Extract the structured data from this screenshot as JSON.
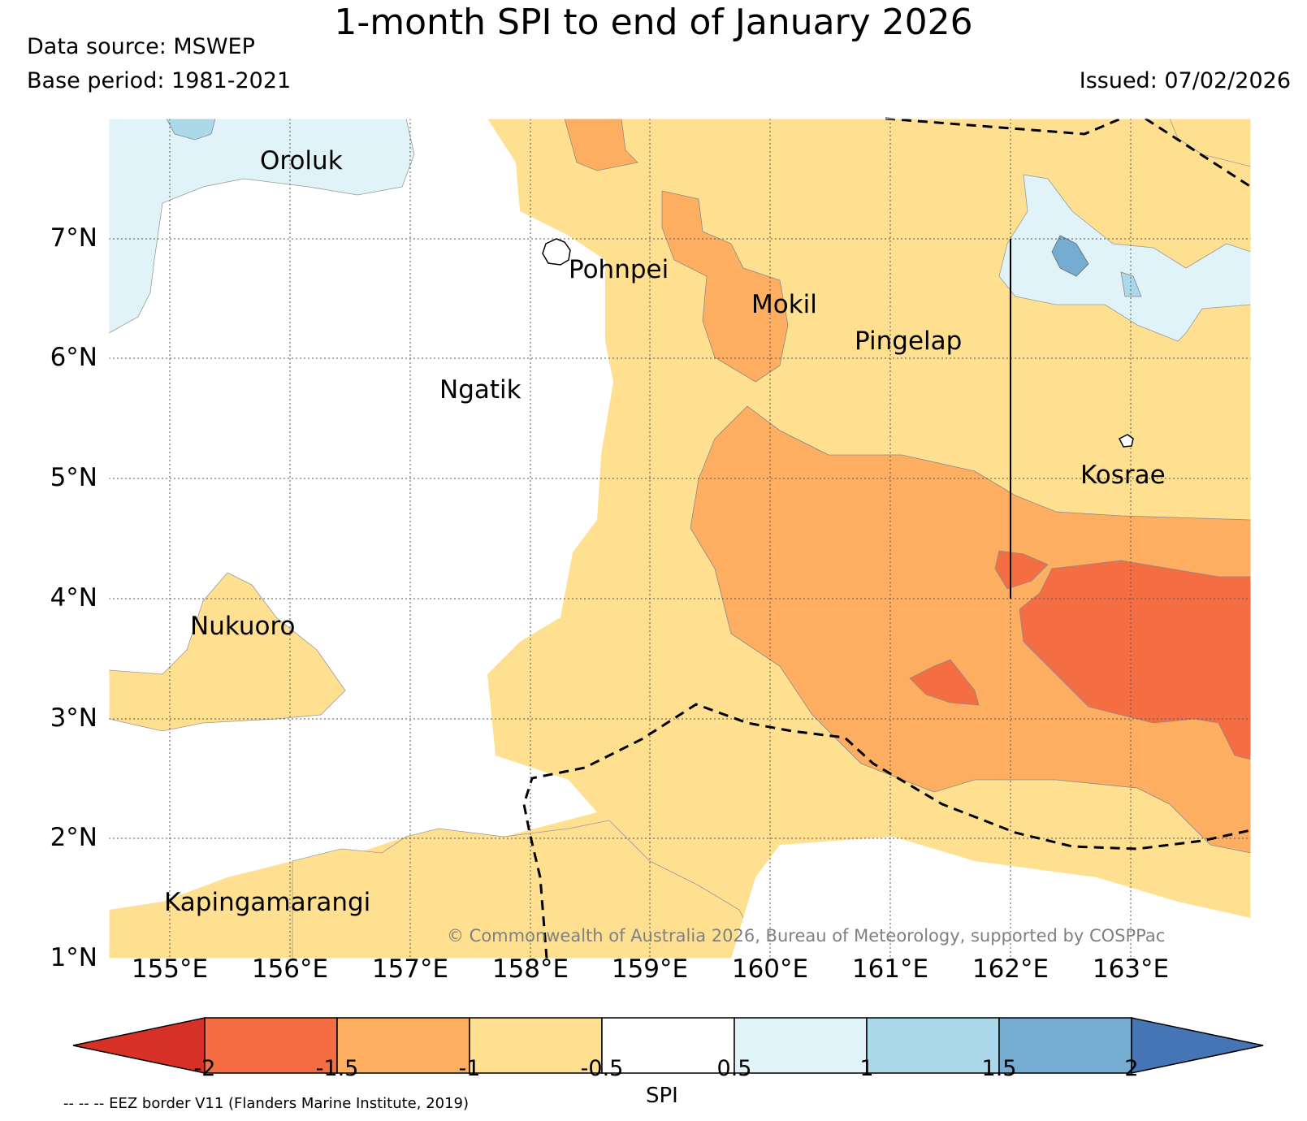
{
  "header": {
    "title": "1-month SPI to end of January 2026",
    "data_source": "Data source: MSWEP",
    "base_period": "Base period: 1981-2021",
    "issued": "Issued: 07/02/2026"
  },
  "map": {
    "lat_labels": [
      "7°N",
      "6°N",
      "5°N",
      "4°N",
      "3°N",
      "2°N",
      "1°N"
    ],
    "lon_labels": [
      "155°E",
      "156°E",
      "157°E",
      "158°E",
      "159°E",
      "160°E",
      "161°E",
      "162°E",
      "163°E"
    ],
    "places": [
      "Oroluk",
      "Pohnpei",
      "Mokil",
      "Pingelap",
      "Ngatik",
      "Kosrae",
      "Nukuoro",
      "Kapingamarangi"
    ],
    "credit": "© Commonwealth of Australia 2026, Bureau of Meteorology, supported by COSPPac"
  },
  "colorbar": {
    "label": "SPI",
    "ticks": [
      "-2",
      "-1.5",
      "-1",
      "-0.5",
      "0.5",
      "1",
      "1.5",
      "2"
    ],
    "colors": [
      "#d73027",
      "#f46d43",
      "#fdae61",
      "#fee090",
      "#ffffff",
      "#e0f3f8",
      "#abd9e9",
      "#74add1",
      "#4575b4"
    ]
  },
  "footnote": "-- -- -- EEZ border V11 (Flanders Marine Institute, 2019)"
}
